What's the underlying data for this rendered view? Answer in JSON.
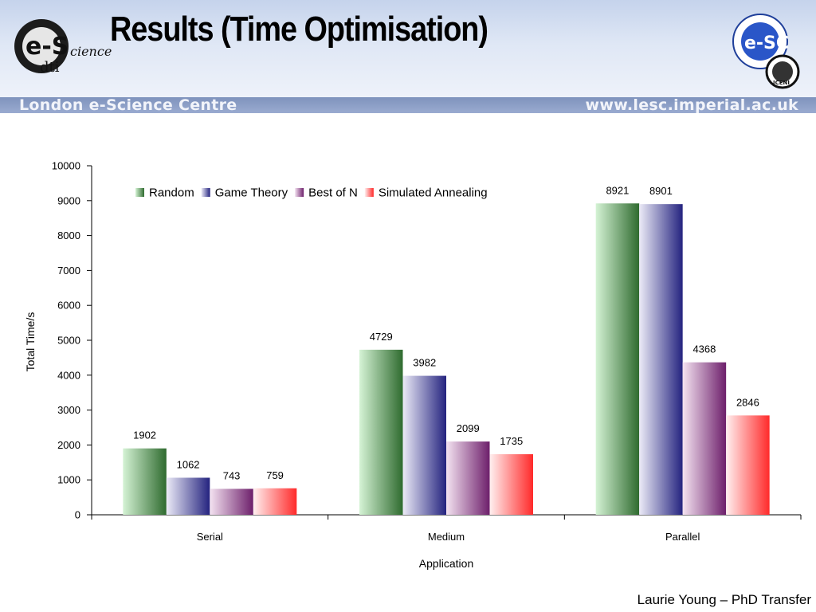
{
  "header": {
    "title": "Results (Time Optimisation)",
    "strip_left": "London e-Science Centre",
    "strip_right": "www.lesc.imperial.ac.uk",
    "logo_left_text": "e-Science",
    "logo_left_sub": "dti",
    "logo_right_text": "e-SC",
    "logo_right_ring": "London e-Science Centre",
    "logo_right_badge": "ICENI"
  },
  "footer": {
    "text": "Laurie Young – PhD Transfer"
  },
  "chart_data": {
    "type": "bar",
    "categories": [
      "Serial",
      "Medium",
      "Parallel"
    ],
    "series": [
      {
        "name": "Random",
        "values": [
          1902,
          4729,
          8921
        ],
        "color": "#2f6b2f",
        "light": "#d5f3d5"
      },
      {
        "name": "Game Theory",
        "values": [
          1062,
          3982,
          8901
        ],
        "color": "#24237f",
        "light": "#ecebf7"
      },
      {
        "name": "Best of N",
        "values": [
          743,
          2099,
          4368
        ],
        "color": "#6d1f6b",
        "light": "#f4e3f1"
      },
      {
        "name": "Simulated Annealing",
        "values": [
          759,
          1735,
          2846
        ],
        "color": "#ff2a2a",
        "light": "#fff0f0"
      }
    ],
    "xlabel": "Application",
    "ylabel": "Total Time/s",
    "ylim": [
      0,
      10000
    ],
    "yticks": [
      0,
      1000,
      2000,
      3000,
      4000,
      5000,
      6000,
      7000,
      8000,
      9000,
      10000
    ],
    "legend_position": "top",
    "grid": false,
    "data_labels": true
  }
}
